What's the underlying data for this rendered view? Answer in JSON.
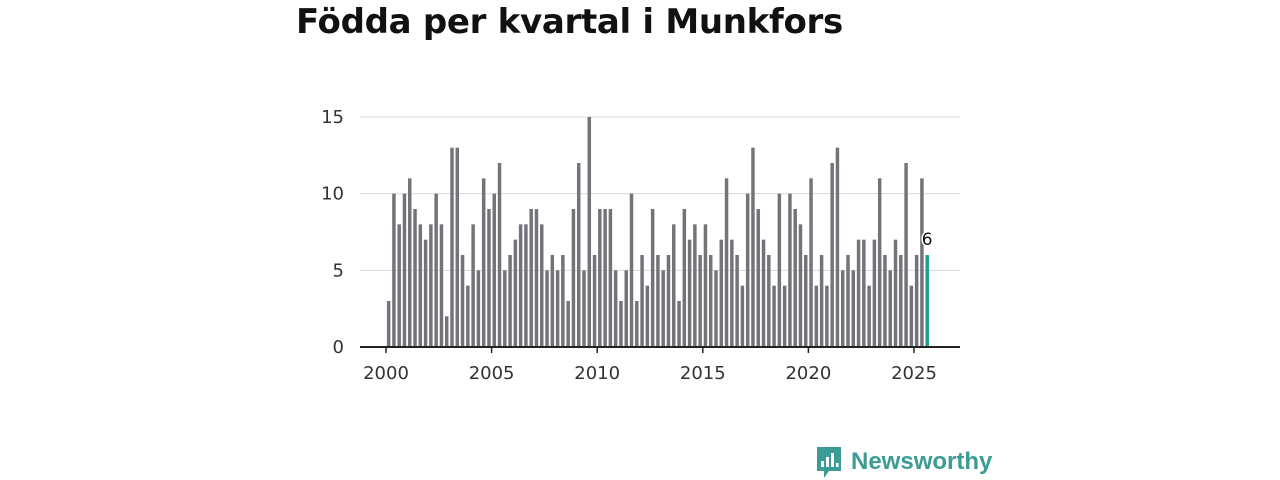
{
  "title": "Födda per kvartal i Munkfors",
  "brand": {
    "name": "Newsworthy",
    "icon": "bar-chart-bubble-icon"
  },
  "colors": {
    "bar": "#74737a",
    "highlight": "#1f9d8f",
    "grid": "#d8d8d8",
    "axis": "#222222"
  },
  "chart_data": {
    "type": "bar",
    "title": "Födda per kvartal i Munkfors",
    "xlabel": "",
    "ylabel": "",
    "ylim": [
      0,
      15
    ],
    "yticks": [
      "0",
      "5",
      "10",
      "15"
    ],
    "xticks": [
      "2000",
      "2005",
      "2010",
      "2015",
      "2020",
      "2025"
    ],
    "grid": true,
    "categories": [
      "2000 K1",
      "2000 K2",
      "2000 K3",
      "2000 K4",
      "2001 K1",
      "2001 K2",
      "2001 K3",
      "2001 K4",
      "2002 K1",
      "2002 K2",
      "2002 K3",
      "2002 K4",
      "2003 K1",
      "2003 K2",
      "2003 K3",
      "2003 K4",
      "2004 K1",
      "2004 K2",
      "2004 K3",
      "2004 K4",
      "2005 K1",
      "2005 K2",
      "2005 K3",
      "2005 K4",
      "2006 K1",
      "2006 K2",
      "2006 K3",
      "2006 K4",
      "2007 K1",
      "2007 K2",
      "2007 K3",
      "2007 K4",
      "2008 K1",
      "2008 K2",
      "2008 K3",
      "2008 K4",
      "2009 K1",
      "2009 K2",
      "2009 K3",
      "2009 K4",
      "2010 K1",
      "2010 K2",
      "2010 K3",
      "2010 K4",
      "2011 K1",
      "2011 K2",
      "2011 K3",
      "2011 K4",
      "2012 K1",
      "2012 K2",
      "2012 K3",
      "2012 K4",
      "2013 K1",
      "2013 K2",
      "2013 K3",
      "2013 K4",
      "2014 K1",
      "2014 K2",
      "2014 K3",
      "2014 K4",
      "2015 K1",
      "2015 K2",
      "2015 K3",
      "2015 K4",
      "2016 K1",
      "2016 K2",
      "2016 K3",
      "2016 K4",
      "2017 K1",
      "2017 K2",
      "2017 K3",
      "2017 K4",
      "2018 K1",
      "2018 K2",
      "2018 K3",
      "2018 K4",
      "2019 K1",
      "2019 K2",
      "2019 K3",
      "2019 K4",
      "2020 K1",
      "2020 K2",
      "2020 K3",
      "2020 K4",
      "2021 K1",
      "2021 K2",
      "2021 K3",
      "2021 K4",
      "2022 K1",
      "2022 K2",
      "2022 K3",
      "2022 K4",
      "2023 K1",
      "2023 K2",
      "2023 K3",
      "2023 K4",
      "2024 K1",
      "2024 K2",
      "2024 K3",
      "2024 K4",
      "2025 K1",
      "2025 K2",
      "2025 K3"
    ],
    "values": [
      3,
      10,
      8,
      10,
      11,
      9,
      8,
      7,
      8,
      10,
      8,
      2,
      13,
      13,
      6,
      4,
      8,
      5,
      11,
      9,
      10,
      12,
      5,
      6,
      7,
      8,
      8,
      9,
      9,
      8,
      5,
      6,
      5,
      6,
      3,
      9,
      12,
      5,
      15,
      6,
      9,
      9,
      9,
      5,
      3,
      5,
      10,
      3,
      6,
      4,
      9,
      6,
      5,
      6,
      8,
      3,
      9,
      7,
      8,
      6,
      8,
      6,
      5,
      7,
      11,
      7,
      6,
      4,
      10,
      13,
      9,
      7,
      6,
      4,
      10,
      4,
      10,
      9,
      8,
      6,
      11,
      4,
      6,
      4,
      12,
      13,
      5,
      6,
      5,
      7,
      7,
      4,
      7,
      11,
      6,
      5,
      7,
      6,
      12,
      4,
      6,
      11,
      6
    ],
    "highlight": {
      "index": 102,
      "label": "6"
    }
  }
}
